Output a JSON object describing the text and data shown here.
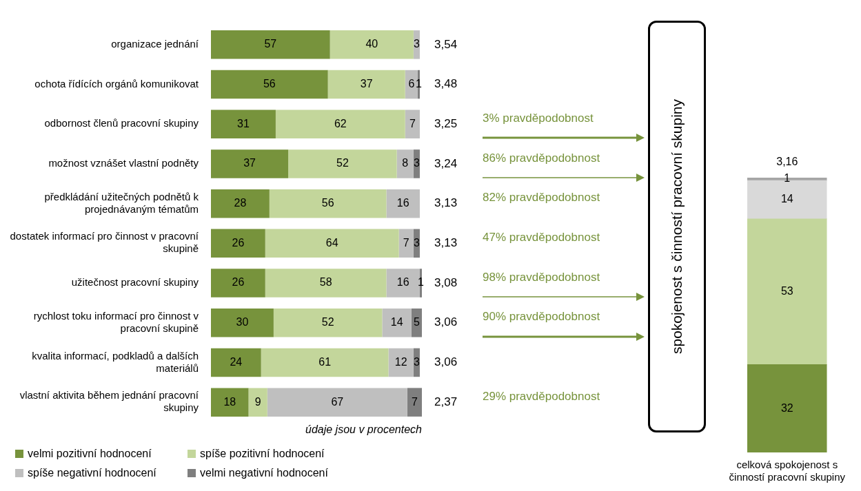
{
  "chart_data": [
    {
      "type": "bar",
      "orientation": "horizontal",
      "stacked": true,
      "categories": [
        "organizace jednání",
        "ochota řídících orgánů komunikovat",
        "odbornost členů pracovní skupiny",
        "možnost vznášet vlastní podněty",
        "předkládání užitečných podnětů k projednávaným tématům",
        "dostatek informací pro činnost v pracovní skupině",
        "užitečnost pracovní skupiny",
        "rychlost toku informací pro činnost v pracovní skupině",
        "kvalita informací, podkladů a dalších materiálů",
        "vlastní aktivita během jednání pracovní skupiny"
      ],
      "series": [
        {
          "name": "velmi pozitivní hodnocení",
          "color": "#77933c",
          "values": [
            57,
            56,
            31,
            37,
            28,
            26,
            26,
            30,
            24,
            18
          ]
        },
        {
          "name": "spíše pozitivní hodnocení",
          "color": "#c3d69b",
          "values": [
            40,
            37,
            62,
            52,
            56,
            64,
            58,
            52,
            61,
            9
          ]
        },
        {
          "name": "spíše negativní hodnocení",
          "color": "#bfbfbf",
          "values": [
            3,
            6,
            7,
            8,
            16,
            7,
            16,
            14,
            12,
            67
          ]
        },
        {
          "name": "velmi negativní hodnocení",
          "color": "#7f7f7f",
          "values": [
            null,
            1,
            null,
            3,
            null,
            3,
            1,
            5,
            3,
            7
          ]
        }
      ],
      "xlim": [
        0,
        101
      ],
      "tick_labels": "y",
      "data_labels": true,
      "legend": "bottom left",
      "annotations": [
        "3,54",
        "3,48",
        "3,25",
        "3,24",
        "3,13",
        "3,13",
        "3,08",
        "3,06",
        "3,06",
        "2,37",
        "3% pravděpodobnost",
        "86% pravděpodobnost",
        "82% pravděpodobnost",
        "47% pravděpodobnost",
        "98% pravděpodobnost",
        "90% pravděpodobnost",
        "29% pravděpodobnost",
        "údaje jsou v procentech",
        "spokojenost s činností pracovní skupiny"
      ]
    },
    {
      "type": "bar",
      "stacked": true,
      "categories": [
        "celková spokojenost s činností pracovní skupiny"
      ],
      "series": [
        {
          "color": "#77933c",
          "values": [
            32
          ]
        },
        {
          "color": "#c3d69b",
          "values": [
            53
          ]
        },
        {
          "color": "#d9d9d9",
          "values": [
            14
          ]
        },
        {
          "color": "#a6a6a6",
          "values": [
            1
          ]
        }
      ],
      "ylim": [
        0,
        100
      ],
      "tick_labels": "x",
      "data_labels": true,
      "annotations": [
        "3,16"
      ]
    }
  ]
}
